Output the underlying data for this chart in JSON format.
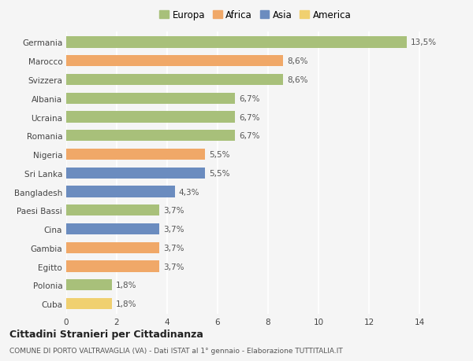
{
  "countries": [
    "Germania",
    "Marocco",
    "Svizzera",
    "Albania",
    "Ucraina",
    "Romania",
    "Nigeria",
    "Sri Lanka",
    "Bangladesh",
    "Paesi Bassi",
    "Cina",
    "Gambia",
    "Egitto",
    "Polonia",
    "Cuba"
  ],
  "values": [
    13.5,
    8.6,
    8.6,
    6.7,
    6.7,
    6.7,
    5.5,
    5.5,
    4.3,
    3.7,
    3.7,
    3.7,
    3.7,
    1.8,
    1.8
  ],
  "labels": [
    "13,5%",
    "8,6%",
    "8,6%",
    "6,7%",
    "6,7%",
    "6,7%",
    "5,5%",
    "5,5%",
    "4,3%",
    "3,7%",
    "3,7%",
    "3,7%",
    "3,7%",
    "1,8%",
    "1,8%"
  ],
  "continents": [
    "Europa",
    "Africa",
    "Europa",
    "Europa",
    "Europa",
    "Europa",
    "Africa",
    "Asia",
    "Asia",
    "Europa",
    "Asia",
    "Africa",
    "Africa",
    "Europa",
    "America"
  ],
  "colors": {
    "Europa": "#a8c07a",
    "Africa": "#f0a868",
    "Asia": "#6b8cbf",
    "America": "#f0d070"
  },
  "xlim": [
    0,
    15
  ],
  "xticks": [
    0,
    2,
    4,
    6,
    8,
    10,
    12,
    14
  ],
  "background_color": "#f5f5f5",
  "grid_color": "#ffffff",
  "title_main": "Cittadini Stranieri per Cittadinanza",
  "title_sub": "COMUNE DI PORTO VALTRAVAGLIA (VA) - Dati ISTAT al 1° gennaio - Elaborazione TUTTITALIA.IT",
  "bar_height": 0.6,
  "label_fontsize": 7.5,
  "tick_fontsize": 7.5,
  "legend_entries": [
    "Europa",
    "Africa",
    "Asia",
    "America"
  ]
}
